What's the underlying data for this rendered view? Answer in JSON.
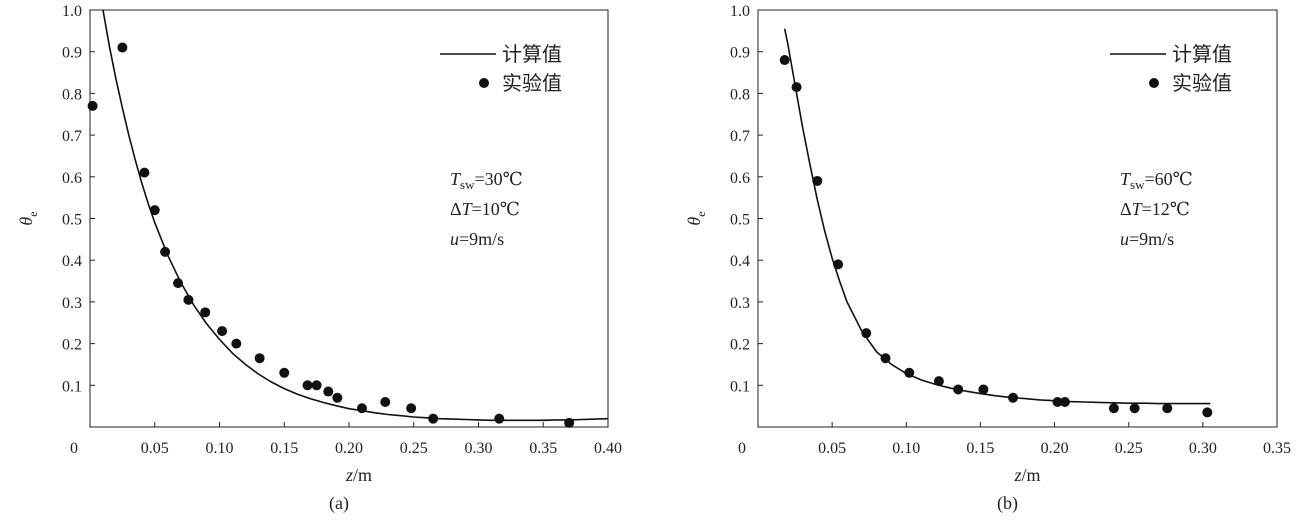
{
  "chart_data": [
    {
      "type": "scatter",
      "panel_label": "(a)",
      "xlabel": "z/m",
      "ylabel": "θe",
      "xlim": [
        0,
        0.4
      ],
      "ylim": [
        0,
        1.0
      ],
      "x_ticks": [
        "0",
        "0.05",
        "0.10",
        "0.15",
        "0.20",
        "0.25",
        "0.30",
        "0.35",
        "0.40"
      ],
      "y_ticks": [
        "0.1",
        "0.2",
        "0.3",
        "0.4",
        "0.5",
        "0.6",
        "0.7",
        "0.8",
        "0.9",
        "1.0"
      ],
      "annotations": [
        "Tsw=30℃",
        "ΔT=10℃",
        "u=9m/s"
      ],
      "series": [
        {
          "name": "计算值",
          "kind": "line",
          "x": [
            0.01,
            0.015,
            0.02,
            0.025,
            0.03,
            0.035,
            0.04,
            0.045,
            0.05,
            0.06,
            0.07,
            0.08,
            0.09,
            0.1,
            0.11,
            0.12,
            0.13,
            0.14,
            0.15,
            0.16,
            0.17,
            0.18,
            0.19,
            0.2,
            0.21,
            0.22,
            0.23,
            0.24,
            0.25,
            0.26,
            0.27,
            0.28,
            0.29,
            0.3,
            0.31,
            0.32,
            0.33,
            0.34,
            0.35,
            0.36,
            0.37,
            0.38,
            0.39,
            0.4
          ],
          "y": [
            1.0,
            0.913,
            0.835,
            0.765,
            0.7,
            0.64,
            0.585,
            0.535,
            0.49,
            0.412,
            0.347,
            0.293,
            0.248,
            0.21,
            0.177,
            0.15,
            0.127,
            0.108,
            0.092,
            0.079,
            0.068,
            0.059,
            0.051,
            0.044,
            0.039,
            0.034,
            0.03,
            0.027,
            0.024,
            0.022,
            0.02,
            0.019,
            0.018,
            0.017,
            0.016,
            0.016,
            0.016,
            0.016,
            0.016,
            0.017,
            0.017,
            0.018,
            0.019,
            0.02
          ]
        },
        {
          "name": "实验值",
          "kind": "points",
          "x": [
            0.002,
            0.025,
            0.042,
            0.05,
            0.058,
            0.068,
            0.076,
            0.089,
            0.102,
            0.113,
            0.131,
            0.15,
            0.168,
            0.175,
            0.184,
            0.191,
            0.21,
            0.228,
            0.248,
            0.265,
            0.316,
            0.37
          ],
          "y": [
            0.77,
            0.91,
            0.61,
            0.52,
            0.42,
            0.345,
            0.305,
            0.275,
            0.23,
            0.2,
            0.165,
            0.13,
            0.1,
            0.1,
            0.085,
            0.07,
            0.045,
            0.06,
            0.045,
            0.02,
            0.02,
            0.01
          ]
        }
      ]
    },
    {
      "type": "scatter",
      "panel_label": "(b)",
      "xlabel": "z/m",
      "ylabel": "θe",
      "xlim": [
        0,
        0.35
      ],
      "ylim": [
        0,
        1.0
      ],
      "x_ticks": [
        "0",
        "0.05",
        "0.10",
        "0.15",
        "0.20",
        "0.25",
        "0.30",
        "0.35"
      ],
      "y_ticks": [
        "0.1",
        "0.2",
        "0.3",
        "0.4",
        "0.5",
        "0.6",
        "0.7",
        "0.8",
        "0.9",
        "1.0"
      ],
      "annotations": [
        "Tsw=60℃",
        "ΔT=12℃",
        "u=9m/s"
      ],
      "series": [
        {
          "name": "计算值",
          "kind": "line",
          "x": [
            0.018,
            0.02,
            0.025,
            0.03,
            0.035,
            0.04,
            0.045,
            0.05,
            0.055,
            0.06,
            0.07,
            0.08,
            0.09,
            0.1,
            0.11,
            0.12,
            0.13,
            0.14,
            0.15,
            0.16,
            0.17,
            0.18,
            0.19,
            0.2,
            0.21,
            0.22,
            0.23,
            0.24,
            0.25,
            0.26,
            0.27,
            0.28,
            0.29,
            0.3,
            0.305
          ],
          "y": [
            0.955,
            0.92,
            0.82,
            0.72,
            0.63,
            0.545,
            0.47,
            0.405,
            0.35,
            0.3,
            0.23,
            0.18,
            0.15,
            0.128,
            0.113,
            0.102,
            0.093,
            0.086,
            0.08,
            0.075,
            0.071,
            0.068,
            0.065,
            0.063,
            0.061,
            0.06,
            0.059,
            0.058,
            0.057,
            0.057,
            0.056,
            0.056,
            0.056,
            0.056,
            0.056
          ]
        },
        {
          "name": "实验值",
          "kind": "points",
          "x": [
            0.018,
            0.026,
            0.04,
            0.054,
            0.073,
            0.086,
            0.102,
            0.122,
            0.135,
            0.152,
            0.172,
            0.202,
            0.207,
            0.24,
            0.254,
            0.276,
            0.303
          ],
          "y": [
            0.88,
            0.815,
            0.59,
            0.39,
            0.225,
            0.165,
            0.13,
            0.11,
            0.09,
            0.09,
            0.07,
            0.06,
            0.06,
            0.045,
            0.045,
            0.045,
            0.035
          ]
        }
      ]
    }
  ]
}
